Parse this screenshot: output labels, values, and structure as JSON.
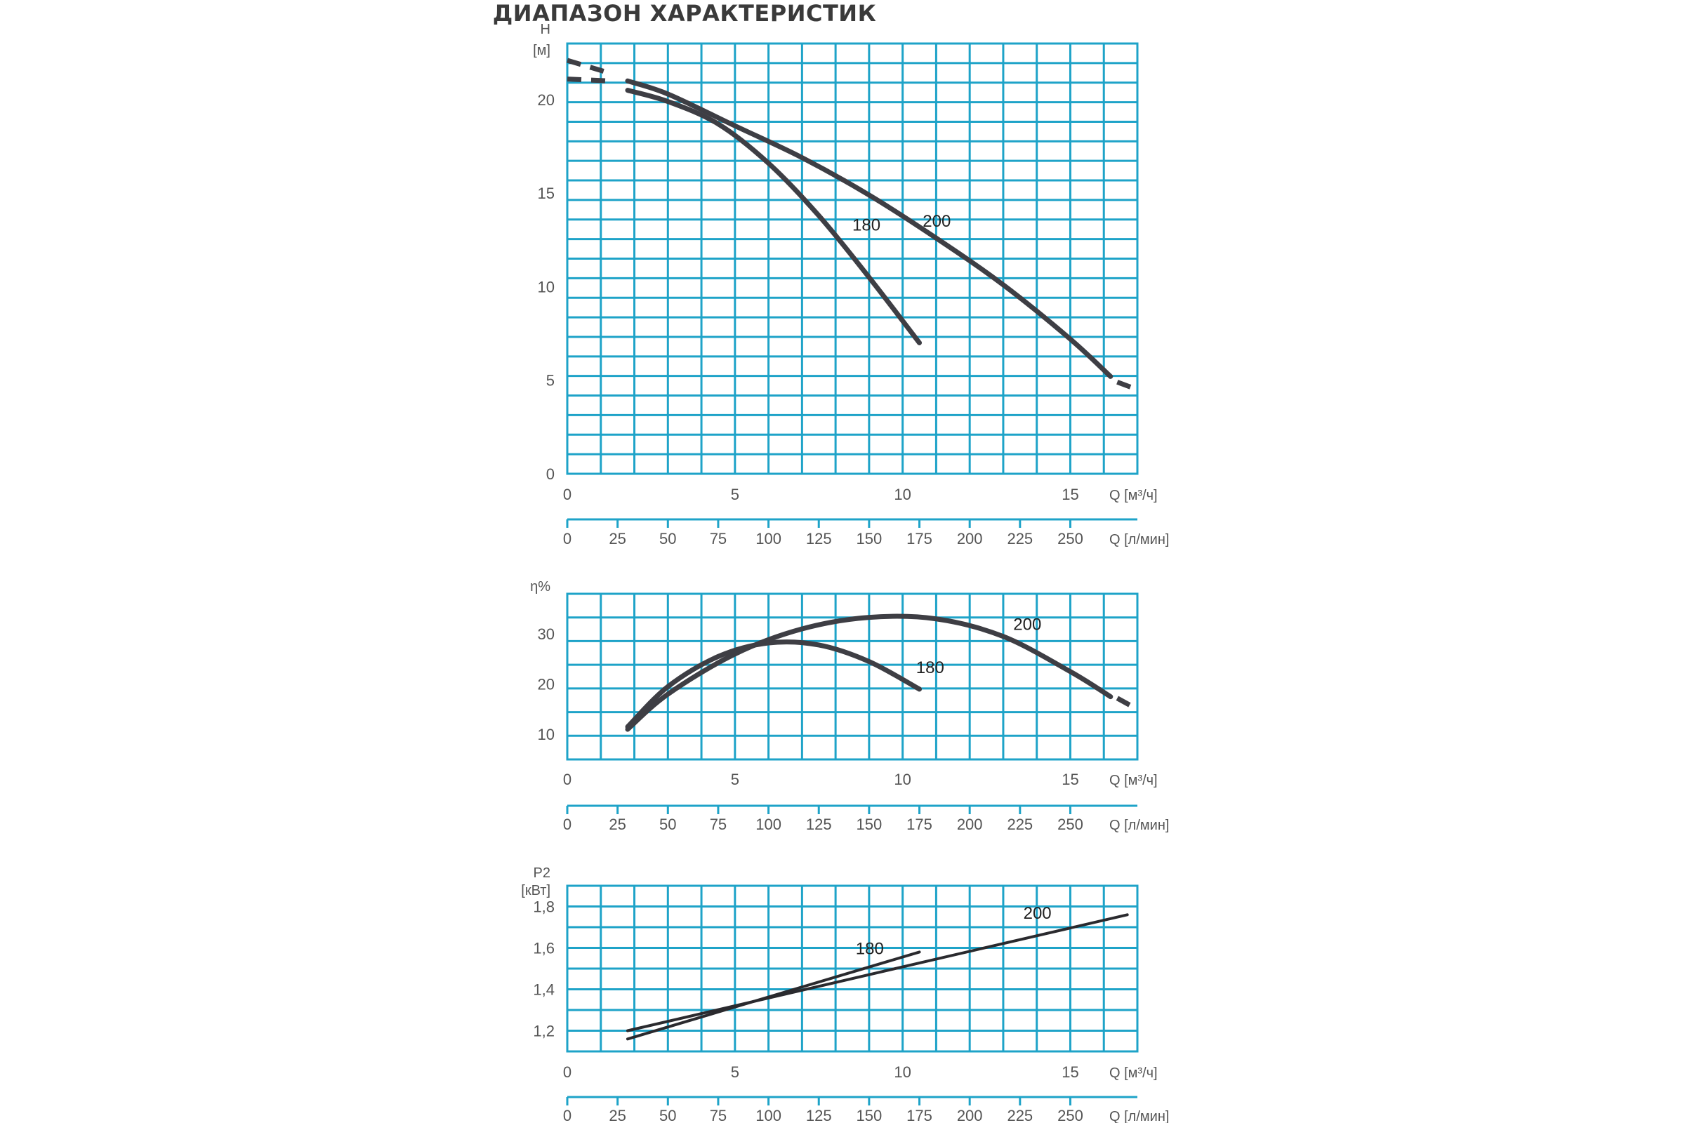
{
  "title": "ДИАПАЗОН ХАРАКТЕРИСТИК",
  "colors": {
    "grid": "#1ea3c8",
    "curve": "#3e3e44",
    "text": "#555555"
  },
  "chart_data": [
    {
      "type": "line",
      "ylabel_lines": [
        "H",
        "[м]"
      ],
      "xlabel": "Q [м³/ч]",
      "xlabel2": "Q [л/мин]",
      "xlim": [
        0,
        17
      ],
      "ylim": [
        0,
        23
      ],
      "x_ticks": [
        0,
        5,
        10,
        15
      ],
      "x_tick_labels": [
        "0",
        "5",
        "10",
        "15"
      ],
      "y_ticks": [
        0,
        5,
        10,
        15,
        20
      ],
      "y_tick_labels": [
        "0",
        "5",
        "10",
        "15",
        "20"
      ],
      "x2_tick_labels": [
        "0",
        "25",
        "50",
        "75",
        "100",
        "125",
        "150",
        "175",
        "200",
        "225",
        "250"
      ],
      "series": [
        {
          "name": "180",
          "x": [
            1.8,
            3,
            4.5,
            6,
            7.5,
            9,
            10.5
          ],
          "y": [
            20.5,
            19.9,
            18.7,
            16.6,
            13.8,
            10.5,
            7.0
          ],
          "dashed_before": [
            [
              0,
              21.1
            ],
            [
              1.3,
              21.0
            ]
          ]
        },
        {
          "name": "200",
          "x": [
            1.8,
            3,
            5,
            7,
            9,
            11,
            13,
            15,
            16.2
          ],
          "y": [
            21.0,
            20.3,
            18.6,
            16.9,
            14.9,
            12.6,
            10.1,
            7.2,
            5.2
          ],
          "dashed_after": [
            [
              16.4,
              4.9
            ],
            [
              17,
              4.5
            ]
          ],
          "dashed_before": [
            [
              0,
              22.1
            ],
            [
              1.3,
              21.4
            ]
          ]
        }
      ],
      "series_labels": [
        {
          "text": "180",
          "x": 8.5,
          "y": 13.0
        },
        {
          "text": "200",
          "x": 10.6,
          "y": 13.2
        }
      ]
    },
    {
      "type": "line",
      "ylabel_lines": [
        "η%"
      ],
      "xlabel": "Q [м³/ч]",
      "xlabel2": "Q [л/мин]",
      "xlim": [
        0,
        17
      ],
      "ylim": [
        5,
        38
      ],
      "x_ticks": [
        0,
        5,
        10,
        15
      ],
      "x_tick_labels": [
        "0",
        "5",
        "10",
        "15"
      ],
      "y_ticks": [
        10,
        20,
        30
      ],
      "y_tick_labels": [
        "10",
        "20",
        "30"
      ],
      "x2_tick_labels": [
        "0",
        "25",
        "50",
        "75",
        "100",
        "125",
        "150",
        "175",
        "200",
        "225",
        "250"
      ],
      "series": [
        {
          "name": "180",
          "x": [
            1.8,
            3,
            4.5,
            6,
            7.5,
            9,
            10.5
          ],
          "y": [
            11.5,
            19.5,
            25.5,
            28.2,
            27.8,
            24.5,
            19.0
          ]
        },
        {
          "name": "200",
          "x": [
            1.8,
            3,
            5,
            7,
            9,
            11,
            13,
            15,
            16.2
          ],
          "y": [
            11.0,
            18.0,
            26.0,
            31.0,
            33.3,
            33.0,
            29.5,
            22.5,
            17.5
          ],
          "dashed_after": [
            [
              16.4,
              17.2
            ],
            [
              17,
              15.0
            ]
          ]
        }
      ],
      "series_labels": [
        {
          "text": "180",
          "x": 10.4,
          "y": 22.2
        },
        {
          "text": "200",
          "x": 13.3,
          "y": 30.8
        }
      ]
    },
    {
      "type": "line",
      "ylabel_lines": [
        "P2",
        "[кВт]"
      ],
      "xlabel": "Q [м³/ч]",
      "xlabel2": "Q [л/мин]",
      "xlim": [
        0,
        17
      ],
      "ylim": [
        1.1,
        1.9
      ],
      "x_ticks": [
        0,
        5,
        10,
        15
      ],
      "x_tick_labels": [
        "0",
        "5",
        "10",
        "15"
      ],
      "y_ticks": [
        1.2,
        1.4,
        1.6,
        1.8
      ],
      "y_tick_labels": [
        "1,2",
        "1,4",
        "1,6",
        "1,8"
      ],
      "x2_tick_labels": [
        "0",
        "25",
        "50",
        "75",
        "100",
        "125",
        "150",
        "175",
        "200",
        "225",
        "250"
      ],
      "series": [
        {
          "name": "180",
          "x": [
            1.8,
            10.5
          ],
          "y": [
            1.16,
            1.58
          ]
        },
        {
          "name": "200",
          "x": [
            1.8,
            16.7
          ],
          "y": [
            1.2,
            1.76
          ]
        }
      ],
      "series_labels": [
        {
          "text": "180",
          "x": 8.6,
          "y": 1.57
        },
        {
          "text": "200",
          "x": 13.6,
          "y": 1.74
        }
      ]
    }
  ]
}
